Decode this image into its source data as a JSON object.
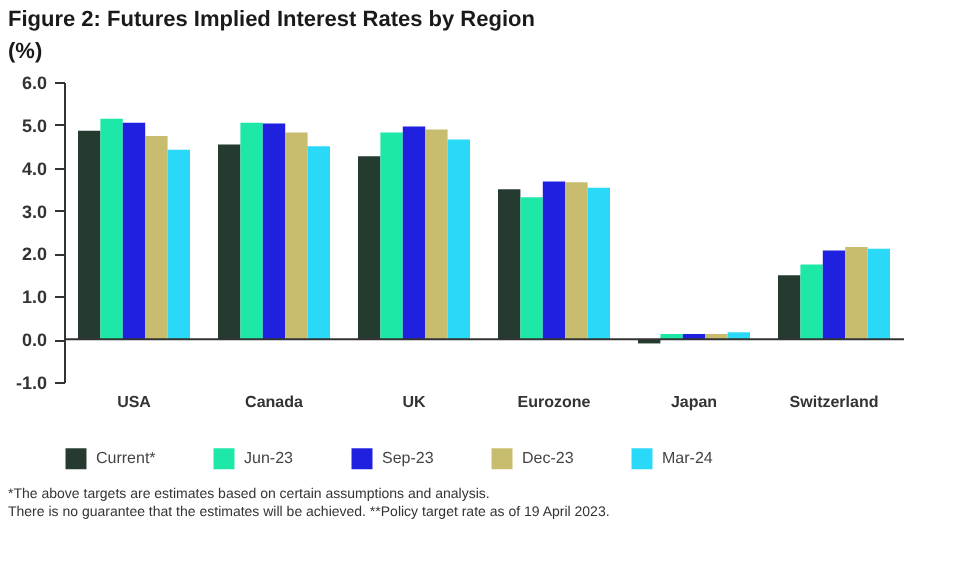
{
  "chart_data": {
    "type": "bar",
    "title": "Figure 2: Futures Implied Interest Rates by Region",
    "ylabel": "(%)",
    "categories": [
      "USA",
      "Canada",
      "UK",
      "Eurozone",
      "Japan",
      "Switzerland"
    ],
    "series": [
      {
        "name": "Current*",
        "color": "#253b30",
        "values": [
          4.86,
          4.54,
          4.27,
          3.5,
          -0.1,
          1.49
        ]
      },
      {
        "name": "Jun-23",
        "color": "#1ee8a8",
        "values": [
          5.14,
          5.05,
          4.82,
          3.31,
          0.12,
          1.74
        ]
      },
      {
        "name": "Sep-23",
        "color": "#2020e0",
        "values": [
          5.05,
          5.03,
          4.96,
          3.68,
          0.12,
          2.07
        ]
      },
      {
        "name": "Dec-23",
        "color": "#c8bd6e",
        "values": [
          4.74,
          4.82,
          4.89,
          3.66,
          0.12,
          2.15
        ]
      },
      {
        "name": "Mar-24",
        "color": "#2ad8f8",
        "values": [
          4.42,
          4.5,
          4.66,
          3.53,
          0.16,
          2.11
        ]
      }
    ],
    "ylim": [
      -1.0,
      6.0
    ],
    "yticks": [
      {
        "value": -1,
        "label": "-1.0"
      },
      {
        "value": 0,
        "label": "0.0"
      },
      {
        "value": 1,
        "label": "1.0"
      },
      {
        "value": 2,
        "label": "2.0"
      },
      {
        "value": 3,
        "label": "3.0"
      },
      {
        "value": 4,
        "label": "4.0"
      },
      {
        "value": 5,
        "label": "5.0"
      },
      {
        "value": 6,
        "label": "6.0"
      }
    ],
    "ref_lines": [
      {
        "axis": "y",
        "value": 0,
        "color": "#333333"
      }
    ],
    "grid": false,
    "legend": "bottom",
    "annotations": [
      "*The above targets are estimates based on certain assumptions and analysis.",
      "There is no guarantee that the estimates will be achieved. **Policy target rate as of 19 April 2023."
    ]
  }
}
